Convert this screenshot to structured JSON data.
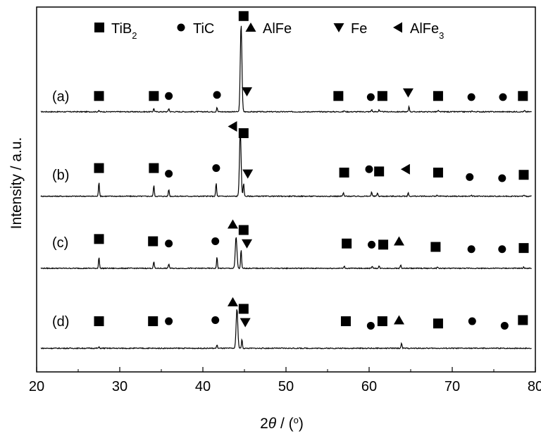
{
  "chart_data": {
    "type": "line",
    "title": "",
    "xlabel": {
      "symbol": "2",
      "theta": "θ",
      "slash": " / (",
      "degree": "o",
      "close": ")"
    },
    "ylabel": "Intensity / a.u.",
    "xlim": [
      20,
      80
    ],
    "xticks": [
      20,
      30,
      40,
      50,
      60,
      70,
      80
    ],
    "xtick_labels": [
      "20",
      "30",
      "40",
      "50",
      "60",
      "70",
      "80"
    ],
    "yticks_shown": false,
    "grid": false,
    "legend": {
      "position": "top",
      "entries": [
        {
          "marker": "square",
          "label": "TiB",
          "sub": "2"
        },
        {
          "marker": "circle",
          "label": "TiC",
          "sub": ""
        },
        {
          "marker": "triangle-up",
          "label": "AlFe",
          "sub": ""
        },
        {
          "marker": "triangle-down",
          "label": "Fe",
          "sub": ""
        },
        {
          "marker": "triangle-left",
          "label": "AlFe",
          "sub": "3"
        }
      ]
    },
    "series": [
      {
        "name": "(a)",
        "baseline": 0.11,
        "peaks": [
          {
            "x": 27.5,
            "h": 0.01
          },
          {
            "x": 34.1,
            "h": 0.03
          },
          {
            "x": 35.9,
            "h": 0.03
          },
          {
            "x": 41.7,
            "h": 0.04
          },
          {
            "x": 44.6,
            "h": 0.78
          },
          {
            "x": 57.0,
            "h": 0.01
          },
          {
            "x": 60.3,
            "h": 0.02
          },
          {
            "x": 61.2,
            "h": 0.02
          },
          {
            "x": 64.8,
            "h": 0.05
          },
          {
            "x": 68.3,
            "h": 0.01
          },
          {
            "x": 72.4,
            "h": 0.01
          },
          {
            "x": 78.7,
            "h": 0.01
          }
        ],
        "markers": [
          {
            "x": 27.5,
            "m": "square",
            "y": 0.25
          },
          {
            "x": 34.1,
            "m": "square",
            "y": 0.25
          },
          {
            "x": 35.9,
            "m": "circle",
            "y": 0.25
          },
          {
            "x": 41.7,
            "m": "circle",
            "y": 0.26
          },
          {
            "x": 44.9,
            "m": "square",
            "y": 0.96
          },
          {
            "x": 45.3,
            "m": "triangle-down",
            "y": 0.29
          },
          {
            "x": 56.3,
            "m": "square",
            "y": 0.25
          },
          {
            "x": 60.2,
            "m": "circle",
            "y": 0.24
          },
          {
            "x": 61.6,
            "m": "square",
            "y": 0.25
          },
          {
            "x": 64.7,
            "m": "triangle-down",
            "y": 0.28
          },
          {
            "x": 68.3,
            "m": "square",
            "y": 0.25
          },
          {
            "x": 72.3,
            "m": "circle",
            "y": 0.24
          },
          {
            "x": 76.1,
            "m": "circle",
            "y": 0.24
          },
          {
            "x": 78.5,
            "m": "square",
            "y": 0.25
          }
        ]
      },
      {
        "name": "(b)",
        "baseline": -0.64,
        "peaks": [
          {
            "x": 27.5,
            "h": 0.13
          },
          {
            "x": 34.1,
            "h": 0.1
          },
          {
            "x": 35.9,
            "h": 0.06
          },
          {
            "x": 41.6,
            "h": 0.12
          },
          {
            "x": 44.5,
            "h": 0.58
          },
          {
            "x": 44.9,
            "h": 0.12
          },
          {
            "x": 56.9,
            "h": 0.03
          },
          {
            "x": 60.3,
            "h": 0.04
          },
          {
            "x": 61.0,
            "h": 0.03
          },
          {
            "x": 64.7,
            "h": 0.03
          },
          {
            "x": 68.2,
            "h": 0.01
          },
          {
            "x": 72.3,
            "h": 0.01
          },
          {
            "x": 78.6,
            "h": 0.01
          }
        ],
        "markers": [
          {
            "x": 27.5,
            "m": "square",
            "y": -0.39
          },
          {
            "x": 34.1,
            "m": "square",
            "y": -0.39
          },
          {
            "x": 35.9,
            "m": "circle",
            "y": -0.44
          },
          {
            "x": 41.6,
            "m": "circle",
            "y": -0.39
          },
          {
            "x": 43.6,
            "m": "triangle-left",
            "y": -0.02
          },
          {
            "x": 44.9,
            "m": "square",
            "y": -0.08
          },
          {
            "x": 45.4,
            "m": "triangle-down",
            "y": -0.44
          },
          {
            "x": 57.0,
            "m": "square",
            "y": -0.43
          },
          {
            "x": 60.0,
            "m": "circle",
            "y": -0.4
          },
          {
            "x": 61.2,
            "m": "square",
            "y": -0.42
          },
          {
            "x": 64.4,
            "m": "triangle-left",
            "y": -0.4
          },
          {
            "x": 68.3,
            "m": "square",
            "y": -0.43
          },
          {
            "x": 72.1,
            "m": "circle",
            "y": -0.47
          },
          {
            "x": 76.0,
            "m": "circle",
            "y": -0.48
          },
          {
            "x": 78.6,
            "m": "square",
            "y": -0.45
          }
        ]
      },
      {
        "name": "(c)",
        "baseline": -1.28,
        "peaks": [
          {
            "x": 27.5,
            "h": 0.1
          },
          {
            "x": 34.1,
            "h": 0.06
          },
          {
            "x": 35.9,
            "h": 0.04
          },
          {
            "x": 41.7,
            "h": 0.1
          },
          {
            "x": 44.0,
            "h": 0.28
          },
          {
            "x": 44.6,
            "h": 0.17
          },
          {
            "x": 57.0,
            "h": 0.02
          },
          {
            "x": 60.4,
            "h": 0.02
          },
          {
            "x": 61.2,
            "h": 0.02
          },
          {
            "x": 63.8,
            "h": 0.03
          },
          {
            "x": 68.2,
            "h": 0.01
          },
          {
            "x": 78.6,
            "h": 0.01
          }
        ],
        "markers": [
          {
            "x": 27.5,
            "m": "square",
            "y": -1.02
          },
          {
            "x": 34.0,
            "m": "square",
            "y": -1.04
          },
          {
            "x": 35.9,
            "m": "circle",
            "y": -1.06
          },
          {
            "x": 41.5,
            "m": "circle",
            "y": -1.04
          },
          {
            "x": 43.6,
            "m": "triangle-up",
            "y": -0.89
          },
          {
            "x": 44.9,
            "m": "square",
            "y": -0.94
          },
          {
            "x": 45.3,
            "m": "triangle-down",
            "y": -1.06
          },
          {
            "x": 57.3,
            "m": "square",
            "y": -1.06
          },
          {
            "x": 60.3,
            "m": "circle",
            "y": -1.07
          },
          {
            "x": 61.7,
            "m": "square",
            "y": -1.07
          },
          {
            "x": 63.6,
            "m": "triangle-up",
            "y": -1.04
          },
          {
            "x": 68.0,
            "m": "square",
            "y": -1.09
          },
          {
            "x": 72.3,
            "m": "circle",
            "y": -1.11
          },
          {
            "x": 76.0,
            "m": "circle",
            "y": -1.11
          },
          {
            "x": 78.6,
            "m": "square",
            "y": -1.1
          }
        ]
      },
      {
        "name": "(d)",
        "baseline": -1.99,
        "peaks": [
          {
            "x": 27.5,
            "h": 0.01
          },
          {
            "x": 41.7,
            "h": 0.03
          },
          {
            "x": 44.1,
            "h": 0.35
          },
          {
            "x": 44.7,
            "h": 0.08
          },
          {
            "x": 63.9,
            "h": 0.05
          }
        ],
        "markers": [
          {
            "x": 27.5,
            "m": "square",
            "y": -1.75
          },
          {
            "x": 34.0,
            "m": "square",
            "y": -1.75
          },
          {
            "x": 35.9,
            "m": "circle",
            "y": -1.75
          },
          {
            "x": 41.5,
            "m": "circle",
            "y": -1.74
          },
          {
            "x": 43.6,
            "m": "triangle-up",
            "y": -1.58
          },
          {
            "x": 44.9,
            "m": "square",
            "y": -1.64
          },
          {
            "x": 45.1,
            "m": "triangle-down",
            "y": -1.76
          },
          {
            "x": 57.2,
            "m": "square",
            "y": -1.75
          },
          {
            "x": 60.2,
            "m": "circle",
            "y": -1.79
          },
          {
            "x": 61.6,
            "m": "square",
            "y": -1.75
          },
          {
            "x": 63.6,
            "m": "triangle-up",
            "y": -1.74
          },
          {
            "x": 68.3,
            "m": "square",
            "y": -1.77
          },
          {
            "x": 72.4,
            "m": "circle",
            "y": -1.75
          },
          {
            "x": 76.3,
            "m": "circle",
            "y": -1.79
          },
          {
            "x": 78.5,
            "m": "square",
            "y": -1.74
          }
        ]
      }
    ]
  }
}
